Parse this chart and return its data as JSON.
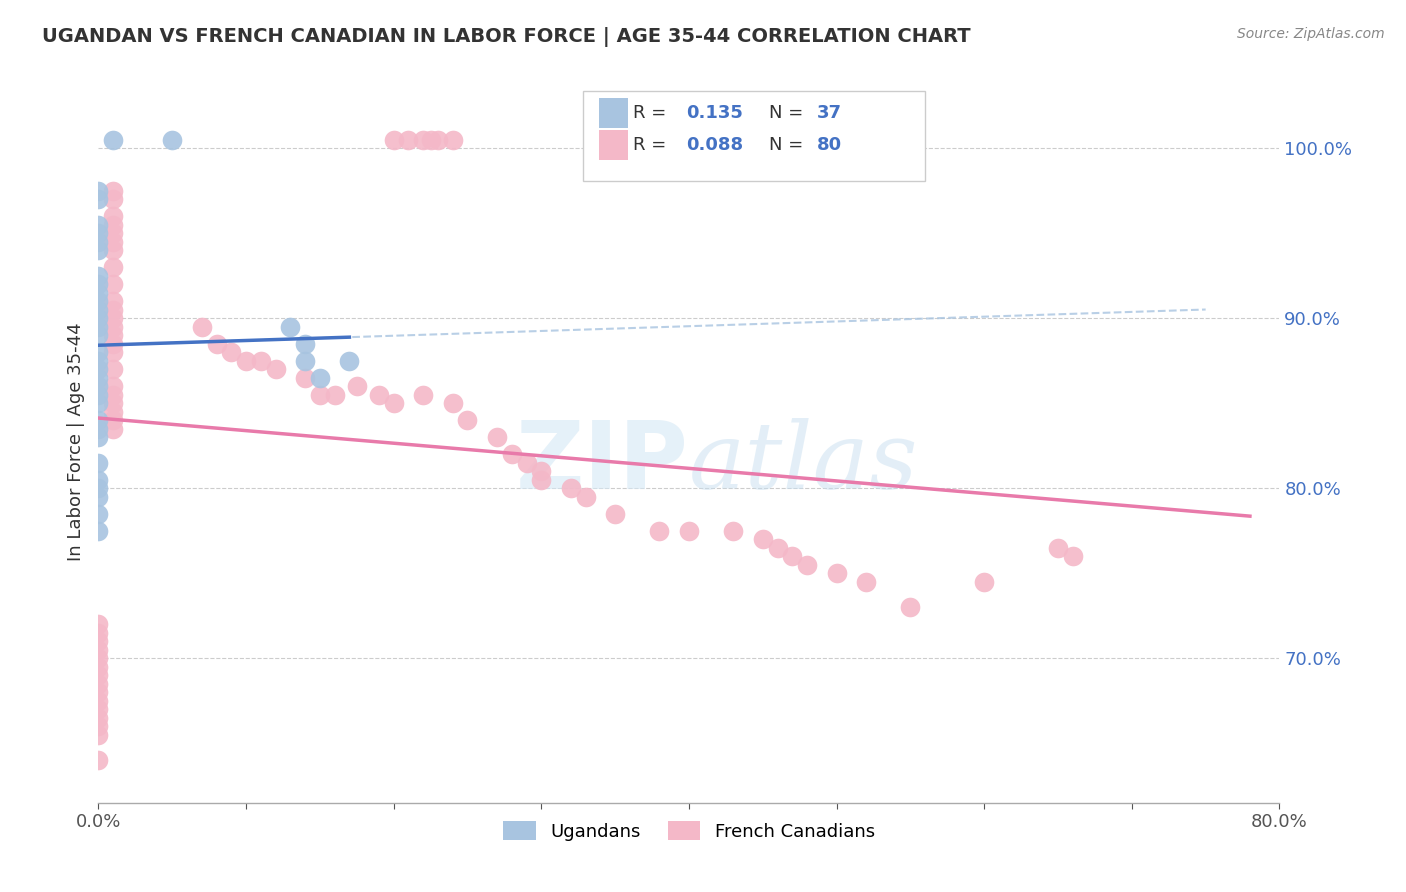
{
  "title": "UGANDAN VS FRENCH CANADIAN IN LABOR FORCE | AGE 35-44 CORRELATION CHART",
  "source": "Source: ZipAtlas.com",
  "ylabel": "In Labor Force | Age 35-44",
  "xlim": [
    0.0,
    0.8
  ],
  "ylim": [
    0.615,
    1.04
  ],
  "r_ugandan": 0.135,
  "n_ugandan": 37,
  "r_french": 0.088,
  "n_french": 80,
  "ugandan_color": "#a8c4e0",
  "french_color": "#f4b8c8",
  "ugandan_line_color": "#4472c4",
  "french_line_color": "#e87aaa",
  "dashed_line_color": "#a8c4e0",
  "ugandan_x": [
    0.01,
    0.05,
    0.0,
    0.0,
    0.0,
    0.0,
    0.0,
    0.0,
    0.0,
    0.0,
    0.0,
    0.0,
    0.0,
    0.0,
    0.0,
    0.0,
    0.0,
    0.0,
    0.0,
    0.0,
    0.0,
    0.0,
    0.0,
    0.0,
    0.0,
    0.0,
    0.13,
    0.14,
    0.14,
    0.15,
    0.17,
    0.0,
    0.0,
    0.0,
    0.0,
    0.0,
    0.0
  ],
  "ugandan_y": [
    1.005,
    1.005,
    0.975,
    0.97,
    0.955,
    0.95,
    0.945,
    0.94,
    0.925,
    0.92,
    0.915,
    0.91,
    0.905,
    0.9,
    0.895,
    0.89,
    0.88,
    0.875,
    0.87,
    0.865,
    0.86,
    0.855,
    0.85,
    0.84,
    0.835,
    0.83,
    0.895,
    0.885,
    0.875,
    0.865,
    0.875,
    0.815,
    0.805,
    0.8,
    0.795,
    0.785,
    0.775
  ],
  "french_x": [
    0.2,
    0.21,
    0.22,
    0.225,
    0.23,
    0.24,
    0.01,
    0.01,
    0.01,
    0.01,
    0.01,
    0.01,
    0.01,
    0.01,
    0.01,
    0.01,
    0.01,
    0.01,
    0.01,
    0.01,
    0.01,
    0.01,
    0.01,
    0.01,
    0.01,
    0.01,
    0.01,
    0.01,
    0.01,
    0.07,
    0.08,
    0.09,
    0.1,
    0.11,
    0.12,
    0.14,
    0.15,
    0.16,
    0.175,
    0.19,
    0.2,
    0.22,
    0.24,
    0.25,
    0.27,
    0.28,
    0.29,
    0.3,
    0.3,
    0.32,
    0.33,
    0.35,
    0.38,
    0.4,
    0.43,
    0.45,
    0.46,
    0.47,
    0.48,
    0.5,
    0.52,
    0.55,
    0.6,
    0.65,
    0.66,
    0.0,
    0.0,
    0.0,
    0.0,
    0.0,
    0.0,
    0.0,
    0.0,
    0.0,
    0.0,
    0.0,
    0.0,
    0.0,
    0.0,
    0.0
  ],
  "french_y": [
    1.005,
    1.005,
    1.005,
    1.005,
    1.005,
    1.005,
    0.975,
    0.97,
    0.96,
    0.955,
    0.95,
    0.945,
    0.94,
    0.93,
    0.92,
    0.91,
    0.905,
    0.9,
    0.895,
    0.89,
    0.885,
    0.88,
    0.87,
    0.86,
    0.855,
    0.85,
    0.845,
    0.84,
    0.835,
    0.895,
    0.885,
    0.88,
    0.875,
    0.875,
    0.87,
    0.865,
    0.855,
    0.855,
    0.86,
    0.855,
    0.85,
    0.855,
    0.85,
    0.84,
    0.83,
    0.82,
    0.815,
    0.81,
    0.805,
    0.8,
    0.795,
    0.785,
    0.775,
    0.775,
    0.775,
    0.77,
    0.765,
    0.76,
    0.755,
    0.75,
    0.745,
    0.73,
    0.745,
    0.765,
    0.76,
    0.72,
    0.715,
    0.71,
    0.705,
    0.7,
    0.695,
    0.69,
    0.685,
    0.68,
    0.675,
    0.67,
    0.665,
    0.66,
    0.655,
    0.64
  ]
}
